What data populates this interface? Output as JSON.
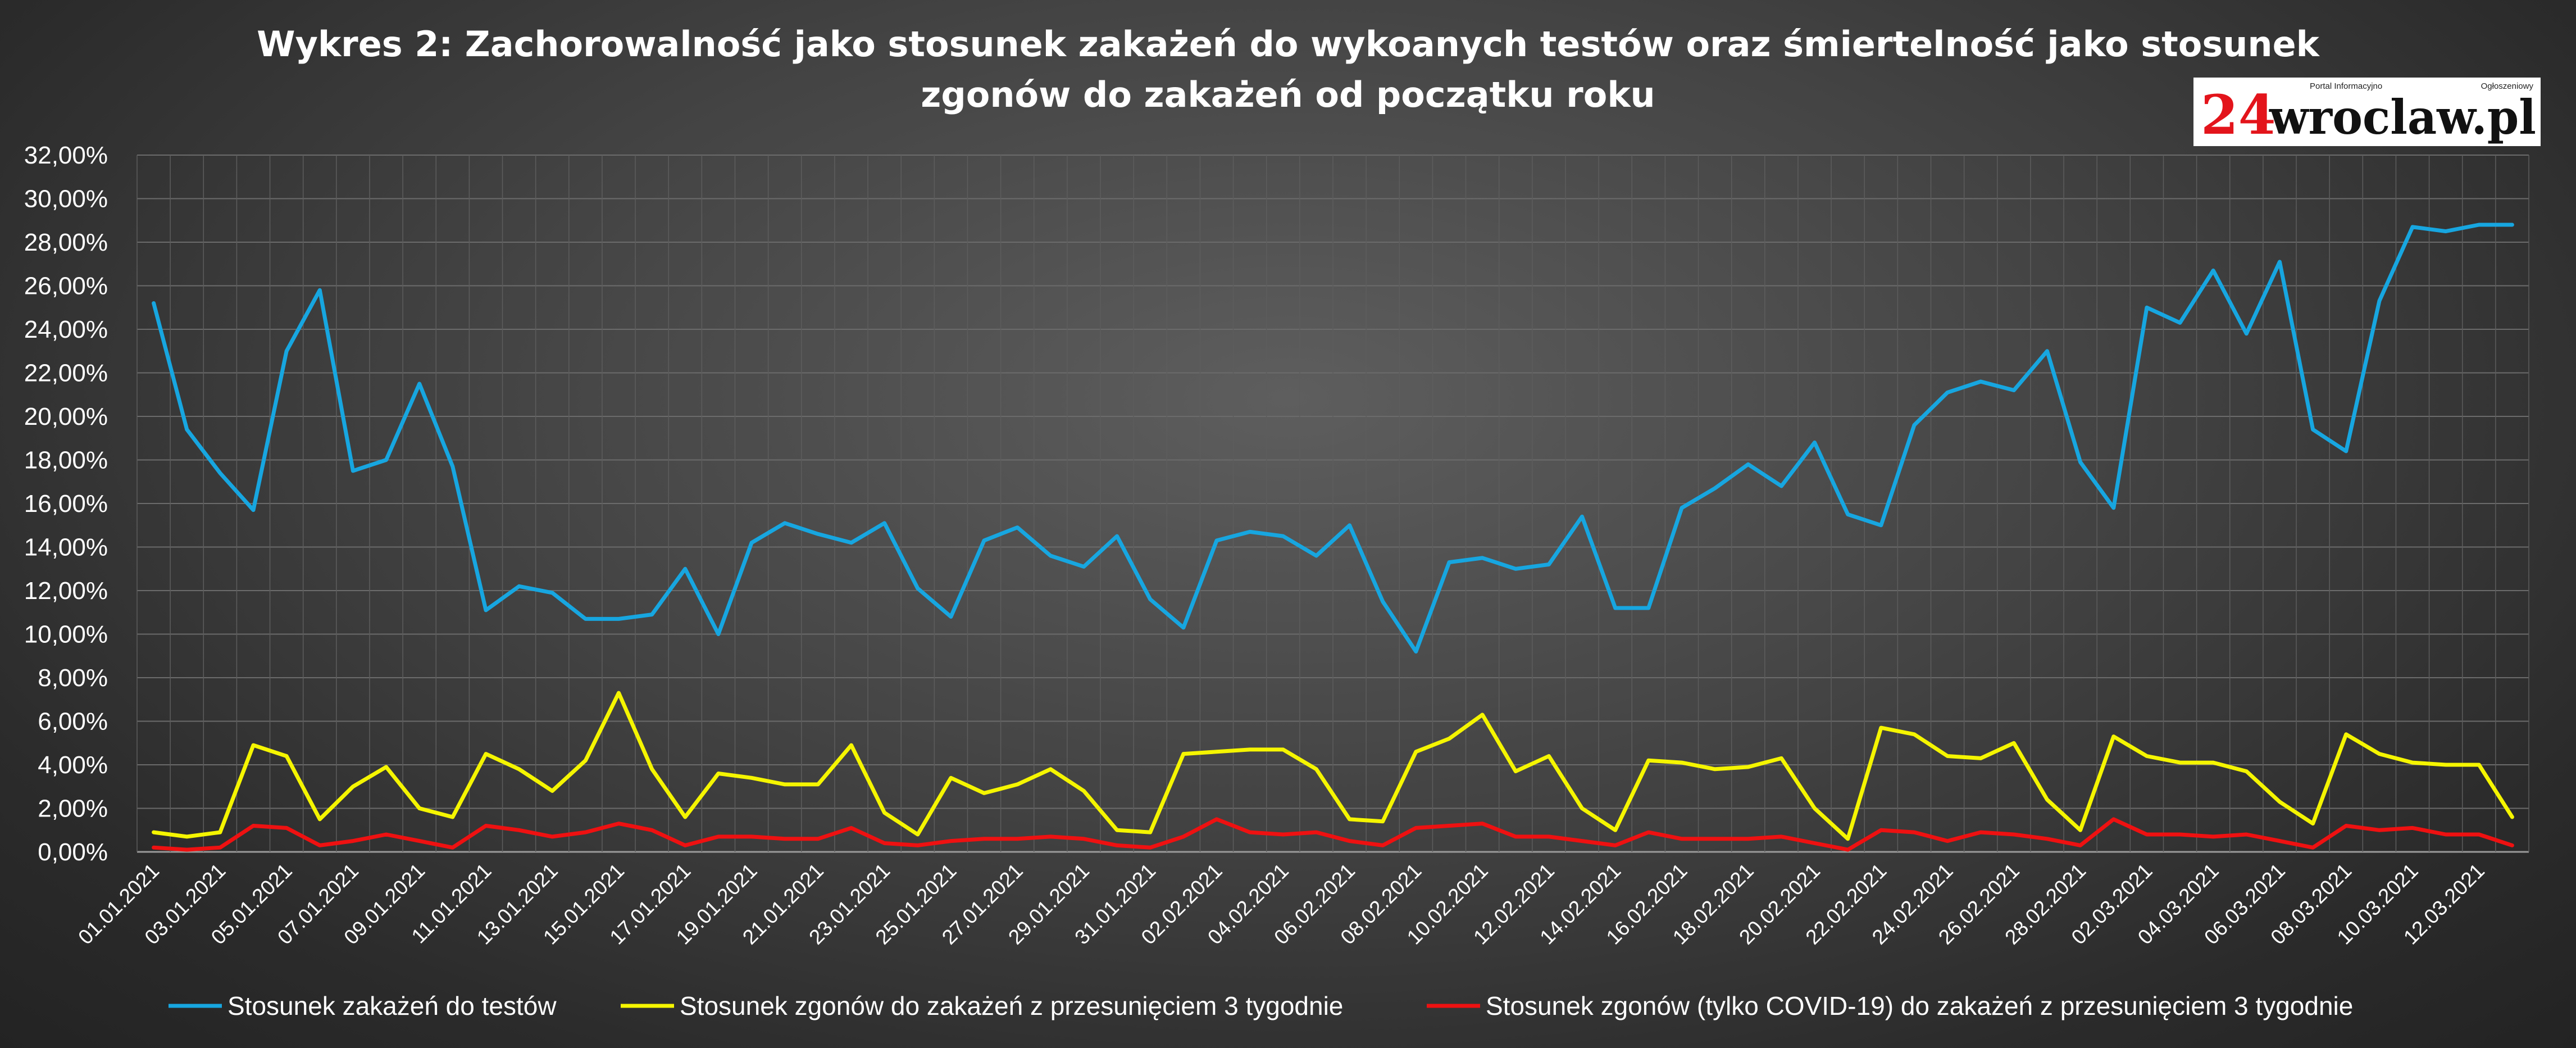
{
  "logo": {
    "number": "24",
    "word": "wroclaw.pl",
    "tagline_left": "Portal Informacyjno",
    "tagline_right": "Ogłoszeniowy"
  },
  "chart_data": {
    "type": "line",
    "title_line1": "Wykres 2: Zachorowalność jako stosunek zakażeń do wykoanych testów oraz śmiertelność jako stosunek",
    "title_line2": "zgonów do zakażeń od początku roku",
    "ylim": [
      0,
      32
    ],
    "y_ticks": [
      0,
      2,
      4,
      6,
      8,
      10,
      12,
      14,
      16,
      18,
      20,
      22,
      24,
      26,
      28,
      30,
      32
    ],
    "y_tick_labels": [
      "0,00%",
      "2,00%",
      "4,00%",
      "6,00%",
      "8,00%",
      "10,00%",
      "12,00%",
      "14,00%",
      "16,00%",
      "18,00%",
      "20,00%",
      "22,00%",
      "24,00%",
      "26,00%",
      "28,00%",
      "30,00%",
      "32,00%"
    ],
    "grid": true,
    "legend_position": "bottom",
    "x": [
      "01.01.2021",
      "02.01.2021",
      "03.01.2021",
      "04.01.2021",
      "05.01.2021",
      "06.01.2021",
      "07.01.2021",
      "08.01.2021",
      "09.01.2021",
      "10.01.2021",
      "11.01.2021",
      "12.01.2021",
      "13.01.2021",
      "14.01.2021",
      "15.01.2021",
      "16.01.2021",
      "17.01.2021",
      "18.01.2021",
      "19.01.2021",
      "20.01.2021",
      "21.01.2021",
      "22.01.2021",
      "23.01.2021",
      "24.01.2021",
      "25.01.2021",
      "26.01.2021",
      "27.01.2021",
      "28.01.2021",
      "29.01.2021",
      "30.01.2021",
      "31.01.2021",
      "01.02.2021",
      "02.02.2021",
      "03.02.2021",
      "04.02.2021",
      "05.02.2021",
      "06.02.2021",
      "07.02.2021",
      "08.02.2021",
      "09.02.2021",
      "10.02.2021",
      "11.02.2021",
      "12.02.2021",
      "13.02.2021",
      "14.02.2021",
      "15.02.2021",
      "16.02.2021",
      "17.02.2021",
      "18.02.2021",
      "19.02.2021",
      "20.02.2021",
      "21.02.2021",
      "22.02.2021",
      "23.02.2021",
      "24.02.2021",
      "25.02.2021",
      "26.02.2021",
      "27.02.2021",
      "28.02.2021",
      "01.03.2021",
      "02.03.2021",
      "03.03.2021",
      "04.03.2021",
      "05.03.2021",
      "06.03.2021",
      "07.03.2021",
      "08.03.2021",
      "09.03.2021",
      "10.03.2021",
      "11.03.2021",
      "12.03.2021",
      "13.03.2021"
    ],
    "x_tick_labels": [
      "01.01.2021",
      "03.01.2021",
      "05.01.2021",
      "07.01.2021",
      "09.01.2021",
      "11.01.2021",
      "13.01.2021",
      "15.01.2021",
      "17.01.2021",
      "19.01.2021",
      "21.01.2021",
      "23.01.2021",
      "25.01.2021",
      "27.01.2021",
      "29.01.2021",
      "31.01.2021",
      "02.02.2021",
      "04.02.2021",
      "06.02.2021",
      "08.02.2021",
      "10.02.2021",
      "12.02.2021",
      "14.02.2021",
      "16.02.2021",
      "18.02.2021",
      "20.02.2021",
      "22.02.2021",
      "24.02.2021",
      "26.02.2021",
      "28.02.2021",
      "02.03.2021",
      "04.03.2021",
      "06.03.2021",
      "08.03.2021",
      "10.03.2021",
      "12.03.2021"
    ],
    "series": [
      {
        "name": "Stosunek zakażeń do testów",
        "color": "#17a6e0",
        "values": [
          25.2,
          19.4,
          17.4,
          15.7,
          23.0,
          25.8,
          17.5,
          18.0,
          21.5,
          17.7,
          11.1,
          12.2,
          11.9,
          10.7,
          10.7,
          10.9,
          13.0,
          10.0,
          14.2,
          15.1,
          14.6,
          14.2,
          15.1,
          12.1,
          10.8,
          14.3,
          14.9,
          13.6,
          13.1,
          14.5,
          11.6,
          10.3,
          14.3,
          14.7,
          14.5,
          13.6,
          15.0,
          11.5,
          9.2,
          13.3,
          13.5,
          13.0,
          13.2,
          15.4,
          11.2,
          11.2,
          15.8,
          16.7,
          17.8,
          16.8,
          18.8,
          15.5,
          15.0,
          19.6,
          21.1,
          21.6,
          21.2,
          23.0,
          17.9,
          15.8,
          25.0,
          24.3,
          26.7,
          23.8,
          27.1,
          19.4,
          18.4,
          25.3,
          28.7,
          28.5,
          28.8,
          28.8
        ]
      },
      {
        "name": "Stosunek zgonów do zakażeń z przesunięciem 3 tygodnie",
        "color": "#f5f500",
        "values": [
          0.9,
          0.7,
          0.9,
          4.9,
          4.4,
          1.5,
          3.0,
          3.9,
          2.0,
          1.6,
          4.5,
          3.8,
          2.8,
          4.2,
          7.3,
          3.8,
          1.6,
          3.6,
          3.4,
          3.1,
          3.1,
          4.9,
          1.8,
          0.8,
          3.4,
          2.7,
          3.1,
          3.8,
          2.8,
          1.0,
          0.9,
          4.5,
          4.6,
          4.7,
          4.7,
          3.8,
          1.5,
          1.4,
          4.6,
          5.2,
          6.3,
          3.7,
          4.4,
          2.0,
          1.0,
          4.2,
          4.1,
          3.8,
          3.9,
          4.3,
          2.0,
          0.6,
          5.7,
          5.4,
          4.4,
          4.3,
          5.0,
          2.4,
          1.0,
          5.3,
          4.4,
          4.1,
          4.1,
          3.7,
          2.3,
          1.3,
          5.4,
          4.5,
          4.1,
          4.0,
          4.0,
          1.6
        ]
      },
      {
        "name": "Stosunek zgonów (tylko COVID-19) do zakażeń z przesunięciem 3 tygodnie",
        "color": "#ee1111",
        "values": [
          0.2,
          0.1,
          0.2,
          1.2,
          1.1,
          0.3,
          0.5,
          0.8,
          0.5,
          0.2,
          1.2,
          1.0,
          0.7,
          0.9,
          1.3,
          1.0,
          0.3,
          0.7,
          0.7,
          0.6,
          0.6,
          1.1,
          0.4,
          0.3,
          0.5,
          0.6,
          0.6,
          0.7,
          0.6,
          0.3,
          0.2,
          0.7,
          1.5,
          0.9,
          0.8,
          0.9,
          0.5,
          0.3,
          1.1,
          1.2,
          1.3,
          0.7,
          0.7,
          0.5,
          0.3,
          0.9,
          0.6,
          0.6,
          0.6,
          0.7,
          0.4,
          0.1,
          1.0,
          0.9,
          0.5,
          0.9,
          0.8,
          0.6,
          0.3,
          1.5,
          0.8,
          0.8,
          0.7,
          0.8,
          0.5,
          0.2,
          1.2,
          1.0,
          1.1,
          0.8,
          0.8,
          0.3
        ]
      }
    ]
  }
}
